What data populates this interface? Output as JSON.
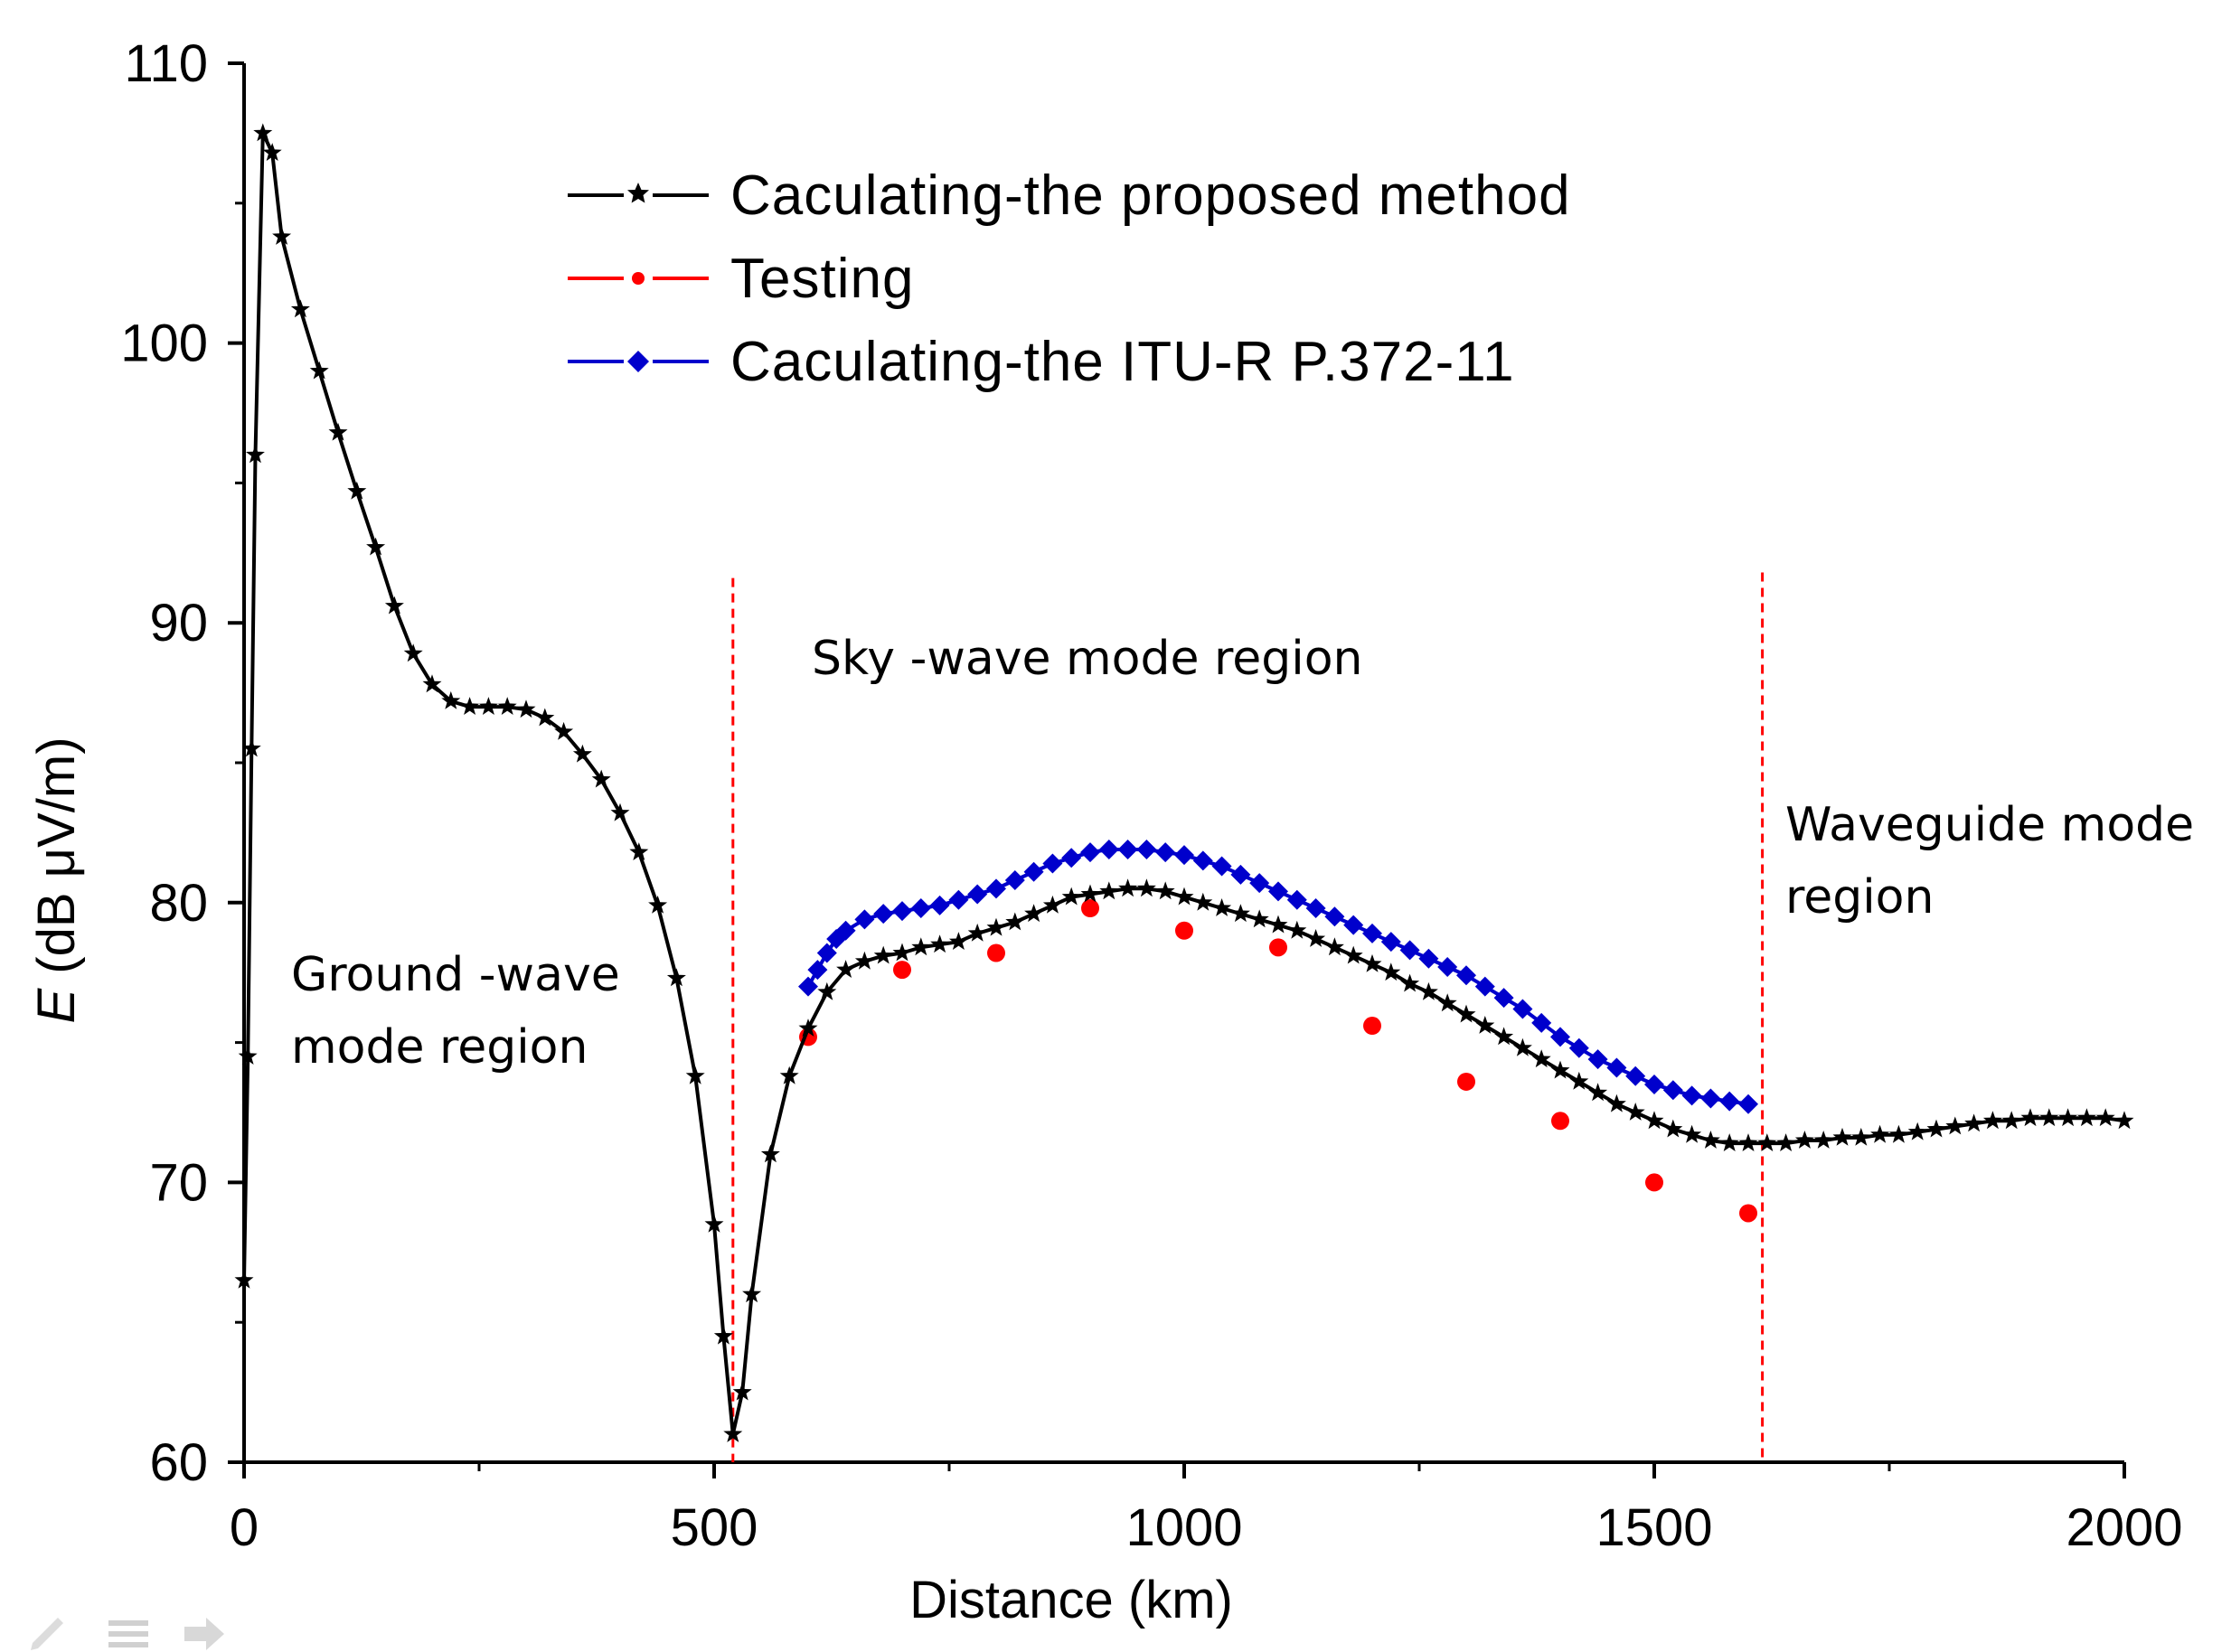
{
  "chart_data": {
    "type": "line",
    "title": "",
    "xlabel": "Distance (km)",
    "ylabel_italic": "E",
    "ylabel_rest": "(dB μV/m)",
    "xlim": [
      0,
      2000
    ],
    "ylim": [
      60,
      110
    ],
    "xticks": [
      0,
      500,
      1000,
      1500,
      2000
    ],
    "yticks": [
      60,
      70,
      80,
      90,
      100,
      110
    ],
    "xtick_labels": [
      "0",
      "500",
      "1000",
      "1500",
      "2000"
    ],
    "ytick_labels": [
      "60",
      "70",
      "80",
      "90",
      "100",
      "110"
    ],
    "legend_position": "top-center",
    "series": [
      {
        "name": "Caculating-the proposed method",
        "color": "#000000",
        "marker": "star",
        "x": [
          0,
          4,
          8,
          12,
          20,
          30,
          40,
          60,
          80,
          100,
          120,
          140,
          160,
          180,
          200,
          220,
          240,
          260,
          280,
          300,
          320,
          340,
          360,
          380,
          400,
          420,
          440,
          460,
          480,
          500,
          510,
          520,
          530,
          540,
          560,
          580,
          600,
          620,
          640,
          660,
          680,
          700,
          720,
          740,
          760,
          780,
          800,
          820,
          840,
          860,
          880,
          900,
          920,
          940,
          960,
          980,
          1000,
          1020,
          1040,
          1060,
          1080,
          1100,
          1120,
          1140,
          1160,
          1180,
          1200,
          1220,
          1240,
          1260,
          1280,
          1300,
          1320,
          1340,
          1360,
          1380,
          1400,
          1420,
          1440,
          1460,
          1480,
          1500,
          1520,
          1540,
          1560,
          1580,
          1600,
          1620,
          1640,
          1660,
          1680,
          1700,
          1720,
          1740,
          1760,
          1780,
          1800,
          1820,
          1840,
          1860,
          1880,
          1900,
          1920,
          1940,
          1960,
          1980,
          2000
        ],
        "y": [
          66.5,
          74.5,
          85.5,
          96,
          107.5,
          106.8,
          103.8,
          101.2,
          99,
          96.8,
          94.7,
          92.7,
          90.6,
          88.9,
          87.8,
          87.2,
          87,
          87,
          87,
          86.9,
          86.6,
          86.1,
          85.3,
          84.4,
          83.2,
          81.8,
          79.9,
          77.3,
          73.8,
          68.5,
          64.5,
          61,
          62.5,
          66,
          71,
          73.8,
          75.5,
          76.8,
          77.6,
          77.9,
          78.1,
          78.2,
          78.4,
          78.5,
          78.6,
          78.9,
          79.1,
          79.3,
          79.6,
          79.9,
          80.2,
          80.3,
          80.4,
          80.5,
          80.5,
          80.4,
          80.2,
          80,
          79.8,
          79.6,
          79.4,
          79.2,
          79,
          78.7,
          78.4,
          78.1,
          77.8,
          77.5,
          77.1,
          76.8,
          76.4,
          76,
          75.6,
          75.2,
          74.8,
          74.4,
          74,
          73.6,
          73.2,
          72.8,
          72.5,
          72.2,
          71.9,
          71.7,
          71.5,
          71.4,
          71.4,
          71.4,
          71.4,
          71.5,
          71.5,
          71.6,
          71.6,
          71.7,
          71.7,
          71.8,
          71.9,
          72,
          72.1,
          72.2,
          72.2,
          72.3,
          72.3,
          72.3,
          72.3,
          72.3,
          72.2
        ]
      },
      {
        "name": "Testing",
        "color": "#ff0000",
        "marker": "dot",
        "x": [
          600,
          700,
          800,
          900,
          1000,
          1100,
          1200,
          1300,
          1400,
          1500,
          1600
        ],
        "y": [
          75.2,
          77.6,
          78.2,
          79.8,
          79,
          78.4,
          75.6,
          73.6,
          72.2,
          70,
          68.9
        ]
      },
      {
        "name": "Caculating-the ITU-R P.372-11",
        "color": "#0000cc",
        "marker": "diamond",
        "x": [
          600,
          610,
          620,
          630,
          640,
          660,
          680,
          700,
          720,
          740,
          760,
          780,
          800,
          820,
          840,
          860,
          880,
          900,
          920,
          940,
          960,
          980,
          1000,
          1020,
          1040,
          1060,
          1080,
          1100,
          1120,
          1140,
          1160,
          1180,
          1200,
          1220,
          1240,
          1260,
          1280,
          1300,
          1320,
          1340,
          1360,
          1380,
          1400,
          1420,
          1440,
          1460,
          1480,
          1500,
          1520,
          1540,
          1560,
          1580,
          1600
        ],
        "y": [
          77,
          77.6,
          78.2,
          78.7,
          79,
          79.4,
          79.6,
          79.7,
          79.8,
          79.9,
          80.1,
          80.3,
          80.5,
          80.8,
          81.1,
          81.4,
          81.6,
          81.8,
          81.9,
          81.9,
          81.9,
          81.8,
          81.7,
          81.5,
          81.3,
          81,
          80.7,
          80.4,
          80.1,
          79.8,
          79.5,
          79.2,
          78.9,
          78.6,
          78.3,
          78,
          77.7,
          77.4,
          77,
          76.6,
          76.2,
          75.7,
          75.2,
          74.8,
          74.4,
          74.1,
          73.8,
          73.5,
          73.3,
          73.1,
          73,
          72.9,
          72.8
        ]
      }
    ],
    "reference_lines": [
      {
        "x": 520,
        "y_top": 91.6,
        "color": "#ff0000"
      },
      {
        "x": 1615,
        "y_top": 91.8,
        "color": "#ff0000"
      }
    ],
    "annotations": [
      {
        "name": "ground-wave",
        "lines": [
          "Ground -wave",
          "mode region"
        ]
      },
      {
        "name": "sky-wave",
        "lines": [
          "Sky -wave mode region"
        ]
      },
      {
        "name": "waveguide",
        "lines": [
          "Waveguide mode",
          "region"
        ]
      }
    ]
  }
}
